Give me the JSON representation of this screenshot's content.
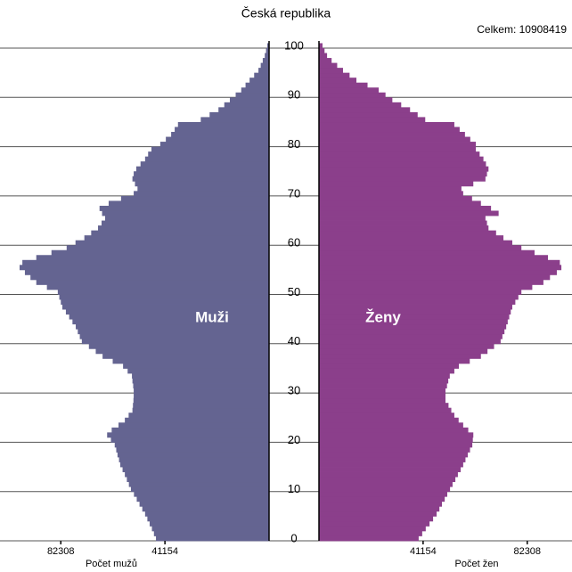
{
  "chart_data": {
    "type": "pyramid",
    "title": "Česká republika",
    "annotation": "Celkem: 10908419",
    "x_label_left": "Počet mužů",
    "x_label_right": "Počet žen",
    "y": [
      0,
      1,
      2,
      3,
      4,
      5,
      6,
      7,
      8,
      9,
      10,
      11,
      12,
      13,
      14,
      15,
      16,
      17,
      18,
      19,
      20,
      21,
      22,
      23,
      24,
      25,
      26,
      27,
      28,
      29,
      30,
      31,
      32,
      33,
      34,
      35,
      36,
      37,
      38,
      39,
      40,
      41,
      42,
      43,
      44,
      45,
      46,
      47,
      48,
      49,
      50,
      51,
      52,
      53,
      54,
      55,
      56,
      57,
      58,
      59,
      60,
      61,
      62,
      63,
      64,
      65,
      66,
      67,
      68,
      69,
      70,
      71,
      72,
      73,
      74,
      75,
      76,
      77,
      78,
      79,
      80,
      81,
      82,
      83,
      84,
      85,
      86,
      87,
      88,
      89,
      90,
      91,
      92,
      93,
      94,
      95,
      96,
      97,
      98,
      99,
      100
    ],
    "ylim": [
      0,
      101
    ],
    "yticks": [
      0,
      10,
      20,
      30,
      40,
      50,
      60,
      70,
      80,
      90,
      100
    ],
    "xlim": [
      0,
      100000
    ],
    "xticks": [
      41154,
      82308
    ],
    "grid": true,
    "series": [
      {
        "name": "Muži",
        "color": "#646491",
        "side": "left",
        "values": [
          44700,
          45500,
          46300,
          47200,
          48100,
          49000,
          50100,
          51200,
          52300,
          53400,
          54600,
          55400,
          56200,
          57000,
          57900,
          58800,
          59300,
          59900,
          60400,
          61000,
          62500,
          64000,
          62200,
          59500,
          57000,
          55500,
          54000,
          53800,
          53600,
          53500,
          53500,
          53700,
          54000,
          54200,
          55900,
          57700,
          61800,
          65800,
          68500,
          71200,
          74000,
          74800,
          75600,
          76400,
          77700,
          79000,
          80300,
          81700,
          82300,
          82900,
          83500,
          87800,
          92000,
          94300,
          96500,
          98600,
          97500,
          92000,
          86000,
          80000,
          76500,
          73000,
          70300,
          67600,
          66200,
          64800,
          66000,
          67000,
          63400,
          58500,
          53500,
          52000,
          53000,
          54000,
          53500,
          52500,
          50800,
          49000,
          47800,
          46500,
          43000,
          40800,
          38700,
          37300,
          36000,
          27000,
          23500,
          20000,
          17700,
          15500,
          13200,
          11000,
          9300,
          7700,
          5900,
          4200,
          3300,
          2500,
          1700,
          1200,
          700
        ]
      },
      {
        "name": "Ženy",
        "color": "#8b3f8b",
        "side": "right",
        "values": [
          39400,
          40800,
          42200,
          43700,
          45100,
          46500,
          47600,
          48600,
          49700,
          50700,
          51800,
          52800,
          53900,
          54900,
          56000,
          57000,
          57900,
          58800,
          59700,
          60600,
          60800,
          61000,
          59000,
          57000,
          55200,
          53500,
          52300,
          51200,
          50000,
          50000,
          50000,
          50600,
          51100,
          51700,
          53500,
          55300,
          59600,
          64000,
          66600,
          69200,
          71800,
          72500,
          73300,
          74000,
          74600,
          75200,
          75800,
          76400,
          77600,
          78800,
          80000,
          84300,
          88700,
          91300,
          94000,
          95800,
          95200,
          90500,
          85200,
          80000,
          76400,
          72900,
          70000,
          67000,
          66400,
          65800,
          71000,
          68000,
          64000,
          60500,
          57000,
          56300,
          61000,
          65800,
          66400,
          67000,
          66000,
          65000,
          63500,
          62000,
          62000,
          59800,
          57700,
          55600,
          53500,
          42000,
          39000,
          36000,
          32500,
          29000,
          26300,
          23600,
          19200,
          14800,
          12100,
          9500,
          7200,
          5000,
          3200,
          2200,
          1400
        ]
      }
    ]
  }
}
